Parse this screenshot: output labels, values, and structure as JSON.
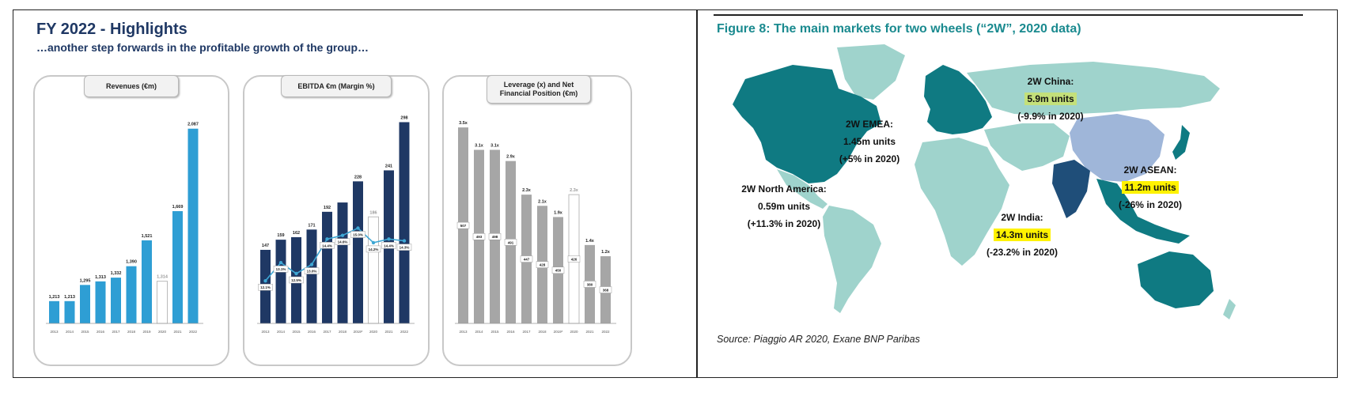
{
  "highlights": {
    "title": "FY 2022 - Highlights",
    "subtitle": "…another step forwards in the profitable growth of the group…"
  },
  "colors": {
    "navy": "#1f3864",
    "teal_bar": "#2e9ed4",
    "grey_bar": "#a6a6a6",
    "line": "#3ea7d4",
    "map_dark": "#0f7a82",
    "map_light": "#9fd3cc",
    "china": "#9fb6d9",
    "india": "#1f4e79",
    "highlight_green": "#c4e07a",
    "highlight_yellow": "#fff200",
    "fig_teal": "#1a8a8f"
  },
  "chart_data": [
    {
      "type": "bar",
      "title": "Revenues (€m)",
      "categories": [
        "2013",
        "2014",
        "2015",
        "2016",
        "2017",
        "2018",
        "2019",
        "2020",
        "2021",
        "2022"
      ],
      "values": [
        1213,
        1213,
        1295,
        1313,
        1332,
        1390,
        1521,
        1314,
        1669,
        2087
      ],
      "value_labels": [
        "1,213",
        "1,213",
        "1,295",
        "1,313",
        "1,332",
        "1,390",
        "1,521",
        "1,314",
        "1,669",
        "2,087"
      ],
      "outlined": [
        7
      ],
      "ylim": [
        1100,
        2150
      ]
    },
    {
      "type": "bar",
      "title": "EBITDA €m (Margin %)",
      "categories": [
        "2013",
        "2014",
        "2015",
        "2016",
        "2017",
        "2018",
        "2019*",
        "2020",
        "2021",
        "2022"
      ],
      "values": [
        147,
        159,
        162,
        171,
        192,
        203,
        228,
        186,
        241,
        298
      ],
      "value_labels": [
        "147",
        "159",
        "162",
        "171",
        "192",
        "",
        "228",
        "186",
        "241",
        "298"
      ],
      "outlined": [
        7
      ],
      "margin_line": {
        "values": [
          12.1,
          13.1,
          12.5,
          13.0,
          14.4,
          14.6,
          15.0,
          14.2,
          14.4,
          14.3
        ],
        "labels": [
          "12.1%",
          "13.1%",
          "12.5%",
          "13.0%",
          "14.4%",
          "14.6%",
          "15.0%",
          "14.2%",
          "14.4%",
          "14.3%"
        ]
      },
      "ylim": [
        60,
        305
      ]
    },
    {
      "type": "bar",
      "title": "Leverage (x) and Net Financial Position (€m)",
      "categories": [
        "2013",
        "2014",
        "2015",
        "2016",
        "2017",
        "2018",
        "2019*",
        "2020",
        "2021",
        "2022"
      ],
      "values": [
        3.5,
        3.1,
        3.1,
        2.9,
        2.3,
        2.1,
        1.9,
        2.3,
        1.4,
        1.2
      ],
      "value_labels": [
        "3.5x",
        "3.1x",
        "3.1x",
        "2.9x",
        "2.3x",
        "2.1x",
        "1.9x",
        "2.3x",
        "1.4x",
        "1.2x"
      ],
      "nfp_labels": [
        "507",
        "493",
        "498",
        "491",
        "447",
        "428",
        "450",
        "426",
        "380",
        "368"
      ],
      "outlined": [
        7
      ],
      "ylim": [
        0,
        3.7
      ]
    },
    {
      "type": "map",
      "title": "Figure 8: The main markets for two wheels (“2W”, 2020 data)",
      "regions": [
        {
          "name": "2W China:",
          "units": "5.9m units",
          "change": "(-9.9% in 2020)",
          "highlight": "green"
        },
        {
          "name": "2W EMEA:",
          "units": "1.45m units",
          "change": "(+5% in 2020)",
          "highlight": "none"
        },
        {
          "name": "2W ASEAN:",
          "units": "11.2m units",
          "change": "(-26% in 2020)",
          "highlight": "yellow"
        },
        {
          "name": "2W North America:",
          "units": "0.59m units",
          "change": "(+11.3% in 2020)",
          "highlight": "none"
        },
        {
          "name": "2W India:",
          "units": "14.3m units",
          "change": "(-23.2% in 2020)",
          "highlight": "yellow"
        }
      ],
      "source": "Source: Piaggio AR 2020, Exane BNP Paribas"
    }
  ]
}
